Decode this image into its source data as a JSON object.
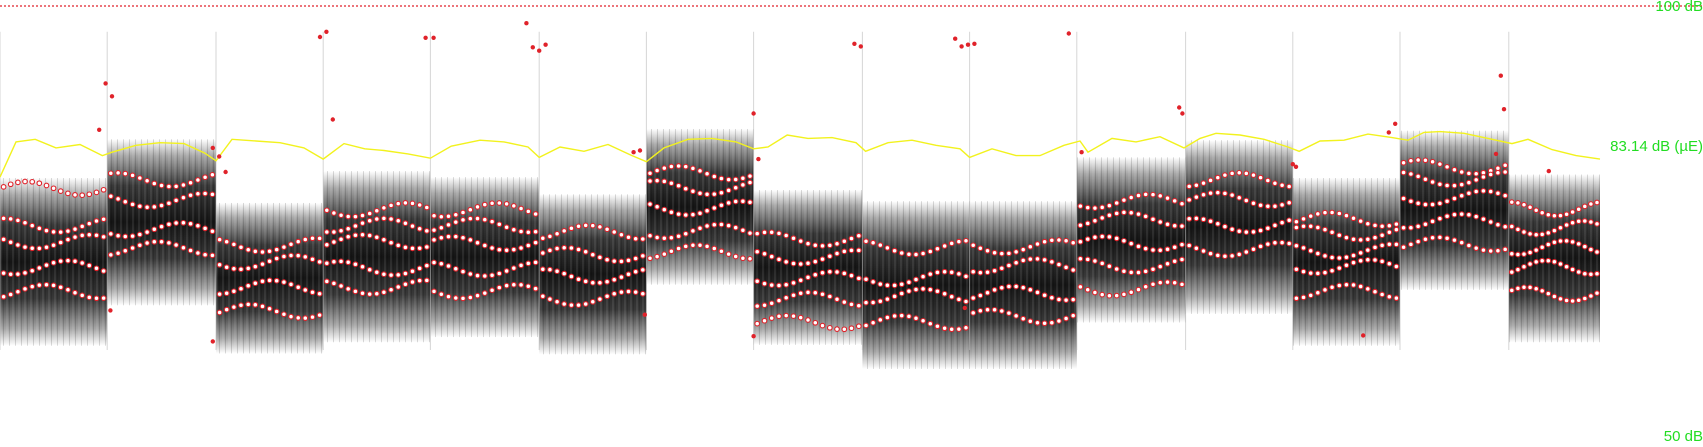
{
  "chart_data": {
    "type": "spectrogram",
    "x_range": [
      0,
      1
    ],
    "ylim": [
      50,
      100
    ],
    "top_label": "100 dB",
    "bottom_label": "50 dB",
    "energy_label": "83.14 dB (µE)",
    "colors": {
      "labels": "#22dd22",
      "energy_curve": "#f2f21e",
      "formant_markers": "#e0222a",
      "max_line": "#e0222a",
      "spectrogram": "#000000"
    },
    "segments": [
      {
        "start": 0.0,
        "end": 0.067,
        "top": 80.0,
        "bottom": 60.5,
        "formants": [
          78.8,
          74.5,
          72.6,
          69.6,
          66.8
        ]
      },
      {
        "start": 0.067,
        "end": 0.135,
        "top": 84.5,
        "bottom": 65.2,
        "formants": [
          79.8,
          77.4,
          74.0,
          71.8
        ]
      },
      {
        "start": 0.135,
        "end": 0.202,
        "top": 77.1,
        "bottom": 59.6,
        "formants": [
          72.2,
          70.2,
          67.3,
          64.5
        ]
      },
      {
        "start": 0.202,
        "end": 0.269,
        "top": 80.8,
        "bottom": 60.9,
        "formants": [
          76.3,
          74.5,
          72.6,
          69.5,
          67.3
        ]
      },
      {
        "start": 0.269,
        "end": 0.337,
        "top": 80.1,
        "bottom": 61.5,
        "formants": [
          76.3,
          74.5,
          72.4,
          69.4,
          66.8
        ]
      },
      {
        "start": 0.337,
        "end": 0.404,
        "top": 78.1,
        "bottom": 59.5,
        "formants": [
          73.7,
          71.1,
          68.6,
          66.0
        ]
      },
      {
        "start": 0.404,
        "end": 0.471,
        "top": 85.7,
        "bottom": 67.6,
        "formants": [
          80.6,
          78.9,
          76.5,
          73.8,
          71.4
        ]
      },
      {
        "start": 0.471,
        "end": 0.539,
        "top": 78.6,
        "bottom": 60.6,
        "formants": [
          72.9,
          70.8,
          68.3,
          65.9,
          63.2
        ]
      },
      {
        "start": 0.539,
        "end": 0.606,
        "top": 77.3,
        "bottom": 57.8,
        "formants": [
          71.9,
          68.3,
          66.3,
          63.2
        ]
      },
      {
        "start": 0.606,
        "end": 0.673,
        "top": 77.3,
        "bottom": 57.8,
        "formants": [
          72.0,
          69.8,
          66.6,
          63.9
        ]
      },
      {
        "start": 0.673,
        "end": 0.741,
        "top": 82.4,
        "bottom": 63.2,
        "formants": [
          77.3,
          75.2,
          72.4,
          69.8,
          67.1
        ]
      },
      {
        "start": 0.741,
        "end": 0.808,
        "top": 84.4,
        "bottom": 64.2,
        "formants": [
          79.8,
          77.5,
          74.5,
          71.7
        ]
      },
      {
        "start": 0.808,
        "end": 0.875,
        "top": 80.0,
        "bottom": 60.5,
        "formants": [
          75.2,
          73.6,
          71.5,
          69.7,
          66.8
        ]
      },
      {
        "start": 0.875,
        "end": 0.943,
        "top": 85.5,
        "bottom": 67.0,
        "formants": [
          81.3,
          79.9,
          77.7,
          75.0,
          72.3
        ]
      },
      {
        "start": 0.943,
        "end": 1.0,
        "top": 80.4,
        "bottom": 60.9,
        "formants": [
          76.4,
          74.2,
          71.9,
          69.6,
          66.5
        ]
      }
    ],
    "outlier_points": [
      [
        0.066,
        91.0
      ],
      [
        0.07,
        89.5
      ],
      [
        0.062,
        85.6
      ],
      [
        0.2,
        96.4
      ],
      [
        0.204,
        97.0
      ],
      [
        0.266,
        96.3
      ],
      [
        0.271,
        96.3
      ],
      [
        0.329,
        98.0
      ],
      [
        0.333,
        95.2
      ],
      [
        0.337,
        94.8
      ],
      [
        0.341,
        95.5
      ],
      [
        0.208,
        86.8
      ],
      [
        0.534,
        95.6
      ],
      [
        0.538,
        95.3
      ],
      [
        0.597,
        96.2
      ],
      [
        0.601,
        95.3
      ],
      [
        0.605,
        95.5
      ],
      [
        0.609,
        95.6
      ],
      [
        0.668,
        96.8
      ],
      [
        0.471,
        87.5
      ],
      [
        0.737,
        88.2
      ],
      [
        0.739,
        87.5
      ],
      [
        0.938,
        91.9
      ],
      [
        0.94,
        88.0
      ],
      [
        0.868,
        85.3
      ],
      [
        0.872,
        86.3
      ],
      [
        0.133,
        83.5
      ],
      [
        0.137,
        82.5
      ],
      [
        0.141,
        80.7
      ],
      [
        0.396,
        83.0
      ],
      [
        0.4,
        83.2
      ],
      [
        0.474,
        82.2
      ],
      [
        0.676,
        83.0
      ],
      [
        0.81,
        81.3
      ],
      [
        0.935,
        82.8
      ],
      [
        0.403,
        64.1
      ],
      [
        0.133,
        61.0
      ],
      [
        0.069,
        64.6
      ],
      [
        0.471,
        61.6
      ],
      [
        0.603,
        64.9
      ],
      [
        0.968,
        80.8
      ],
      [
        0.852,
        61.7
      ],
      [
        0.808,
        81.6
      ]
    ],
    "energy_curve": [
      [
        0.0,
        80.1
      ],
      [
        0.01,
        84.2
      ],
      [
        0.022,
        84.5
      ],
      [
        0.035,
        83.5
      ],
      [
        0.05,
        83.9
      ],
      [
        0.064,
        82.6
      ],
      [
        0.07,
        83.0
      ],
      [
        0.085,
        83.8
      ],
      [
        0.1,
        84.1
      ],
      [
        0.115,
        84.0
      ],
      [
        0.128,
        82.9
      ],
      [
        0.135,
        82.0
      ],
      [
        0.145,
        84.5
      ],
      [
        0.16,
        84.3
      ],
      [
        0.175,
        84.1
      ],
      [
        0.19,
        83.5
      ],
      [
        0.202,
        82.2
      ],
      [
        0.215,
        84.0
      ],
      [
        0.228,
        83.4
      ],
      [
        0.24,
        83.2
      ],
      [
        0.255,
        82.8
      ],
      [
        0.269,
        82.3
      ],
      [
        0.282,
        83.7
      ],
      [
        0.3,
        84.4
      ],
      [
        0.315,
        84.2
      ],
      [
        0.33,
        83.6
      ],
      [
        0.337,
        82.4
      ],
      [
        0.35,
        83.6
      ],
      [
        0.365,
        83.1
      ],
      [
        0.38,
        83.9
      ],
      [
        0.395,
        82.6
      ],
      [
        0.404,
        81.9
      ],
      [
        0.415,
        83.5
      ],
      [
        0.43,
        84.5
      ],
      [
        0.445,
        84.6
      ],
      [
        0.46,
        84.2
      ],
      [
        0.471,
        83.4
      ],
      [
        0.48,
        83.6
      ],
      [
        0.492,
        85.0
      ],
      [
        0.505,
        84.6
      ],
      [
        0.52,
        84.7
      ],
      [
        0.535,
        84.1
      ],
      [
        0.541,
        83.1
      ],
      [
        0.555,
        84.1
      ],
      [
        0.57,
        84.4
      ],
      [
        0.585,
        83.8
      ],
      [
        0.6,
        83.4
      ],
      [
        0.606,
        82.4
      ],
      [
        0.62,
        83.4
      ],
      [
        0.635,
        82.6
      ],
      [
        0.65,
        82.6
      ],
      [
        0.665,
        83.8
      ],
      [
        0.675,
        84.3
      ],
      [
        0.68,
        83.0
      ],
      [
        0.695,
        84.6
      ],
      [
        0.71,
        84.2
      ],
      [
        0.725,
        84.8
      ],
      [
        0.74,
        83.5
      ],
      [
        0.75,
        84.6
      ],
      [
        0.76,
        85.2
      ],
      [
        0.775,
        85.0
      ],
      [
        0.79,
        84.5
      ],
      [
        0.805,
        83.6
      ],
      [
        0.812,
        83.1
      ],
      [
        0.825,
        84.3
      ],
      [
        0.84,
        84.4
      ],
      [
        0.855,
        85.1
      ],
      [
        0.87,
        84.7
      ],
      [
        0.88,
        84.4
      ],
      [
        0.89,
        85.3
      ],
      [
        0.9,
        85.4
      ],
      [
        0.915,
        85.2
      ],
      [
        0.93,
        84.6
      ],
      [
        0.945,
        84.0
      ],
      [
        0.955,
        84.5
      ],
      [
        0.97,
        83.3
      ],
      [
        0.985,
        82.6
      ],
      [
        1.0,
        82.2
      ]
    ]
  }
}
